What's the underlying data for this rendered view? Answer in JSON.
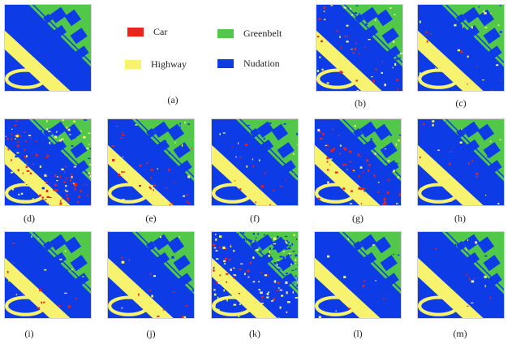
{
  "colors": {
    "car": "#e8241c",
    "highway": "#f7f36e",
    "greenbelt": "#52c84a",
    "nudation": "#0d3ce6"
  },
  "legend": [
    {
      "key": "car",
      "label": "Car"
    },
    {
      "key": "greenbelt",
      "label": "Greenbelt"
    },
    {
      "key": "highway",
      "label": "Highway"
    },
    {
      "key": "nudation",
      "label": "Nudation"
    }
  ],
  "panels": [
    {
      "label": "(a)"
    },
    {
      "label": "(b)"
    },
    {
      "label": "(c)"
    },
    {
      "label": "(d)"
    },
    {
      "label": "(e)"
    },
    {
      "label": "(f)"
    },
    {
      "label": "(g)"
    },
    {
      "label": "(h)"
    },
    {
      "label": "(i)"
    },
    {
      "label": "(j)"
    },
    {
      "label": "(k)"
    },
    {
      "label": "(l)"
    },
    {
      "label": "(m)"
    }
  ]
}
